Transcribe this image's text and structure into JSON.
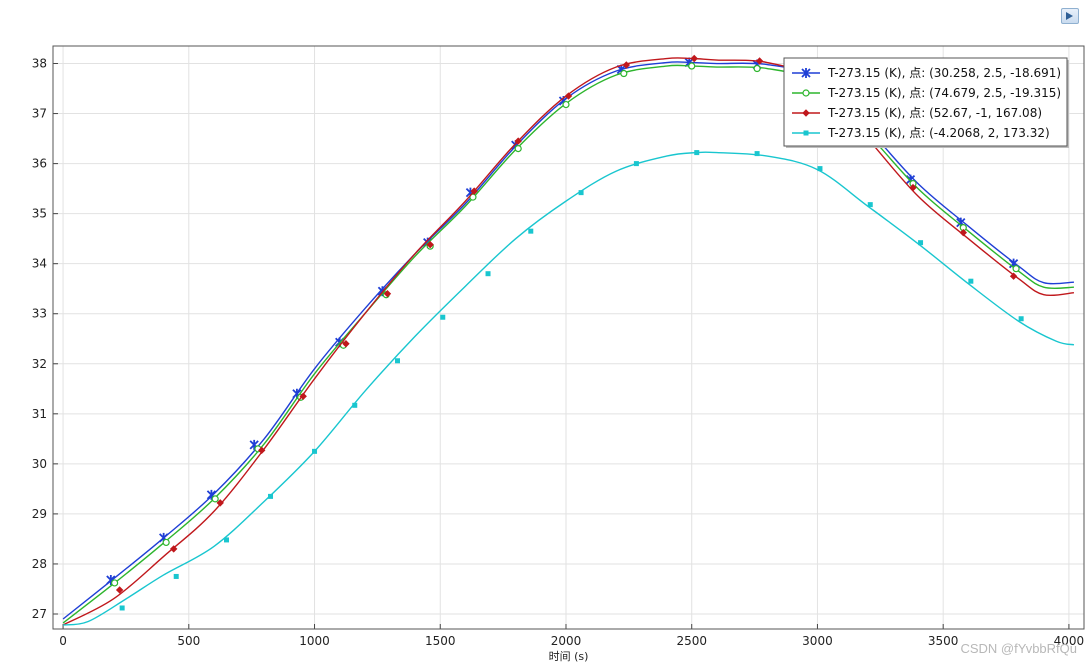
{
  "toolbar": {
    "corner_icon": "plot-window-icon"
  },
  "watermark": "CSDN @fYvbbRfQu",
  "chart_data": {
    "type": "line",
    "title": "",
    "xlabel": "时间 (s)",
    "ylabel": "",
    "xlim": [
      -40,
      4060
    ],
    "ylim": [
      26.7,
      38.35
    ],
    "xticks": [
      0,
      500,
      1000,
      1500,
      2000,
      2500,
      3000,
      3500,
      4000
    ],
    "yticks": [
      27,
      28,
      29,
      30,
      31,
      32,
      33,
      34,
      35,
      36,
      37,
      38
    ],
    "grid": true,
    "legend_position": "top-right",
    "series": [
      {
        "name": "T-273.15 (K), 点: (30.258, 2.5, -18.691)",
        "color": "#1f3fd6",
        "marker": "star",
        "x": [
          0,
          200,
          400,
          600,
          800,
          1000,
          1200,
          1400,
          1600,
          1800,
          2000,
          2200,
          2400,
          2500,
          2600,
          2800,
          3000,
          3200,
          3400,
          3600,
          3800,
          3900,
          4020
        ],
        "y": [
          26.9,
          27.7,
          28.52,
          29.4,
          30.5,
          31.9,
          33.1,
          34.2,
          35.2,
          36.35,
          37.3,
          37.85,
          38.02,
          38.02,
          38.0,
          37.98,
          37.7,
          36.7,
          35.6,
          34.75,
          33.95,
          33.62,
          33.63
        ],
        "marker_x": [
          190,
          400,
          590,
          760,
          930,
          1100,
          1270,
          1450,
          1620,
          1800,
          1990,
          2220,
          2490,
          2760,
          3370,
          3570,
          3780
        ],
        "marker_y": [
          27.68,
          28.52,
          29.38,
          30.38,
          31.4,
          32.43,
          33.45,
          34.42,
          35.42,
          36.37,
          37.25,
          37.88,
          38.02,
          37.98,
          35.68,
          34.82,
          34.0
        ]
      },
      {
        "name": "T-273.15 (K), 点: (74.679, 2.5, -19.315)",
        "color": "#2db52d",
        "marker": "circle",
        "x": [
          0,
          200,
          400,
          600,
          800,
          1000,
          1200,
          1400,
          1600,
          1800,
          2000,
          2200,
          2400,
          2500,
          2600,
          2800,
          3000,
          3200,
          3400,
          3600,
          3800,
          3900,
          4020
        ],
        "y": [
          26.82,
          27.6,
          28.42,
          29.3,
          30.4,
          31.8,
          33.0,
          34.15,
          35.15,
          36.28,
          37.2,
          37.77,
          37.95,
          37.95,
          37.93,
          37.9,
          37.6,
          36.6,
          35.5,
          34.65,
          33.85,
          33.53,
          33.53
        ],
        "marker_x": [
          205,
          410,
          605,
          775,
          945,
          1115,
          1285,
          1460,
          1630,
          1810,
          2000,
          2230,
          2500,
          2760,
          3380,
          3580,
          3790
        ],
        "marker_y": [
          27.62,
          28.43,
          29.3,
          30.3,
          31.33,
          32.37,
          33.38,
          34.35,
          35.33,
          36.3,
          37.18,
          37.8,
          37.95,
          37.9,
          35.6,
          34.72,
          33.9
        ]
      },
      {
        "name": "T-273.15 (K), 点: (52.67, -1, 167.08)",
        "color": "#c0181c",
        "marker": "diamond",
        "x": [
          0,
          200,
          400,
          600,
          800,
          1000,
          1200,
          1400,
          1600,
          1800,
          2000,
          2200,
          2400,
          2500,
          2600,
          2800,
          3000,
          3200,
          3400,
          3600,
          3800,
          3900,
          4020
        ],
        "y": [
          26.78,
          27.3,
          28.15,
          29.05,
          30.3,
          31.7,
          33.0,
          34.2,
          35.25,
          36.4,
          37.35,
          37.93,
          38.1,
          38.1,
          38.07,
          38.02,
          37.65,
          36.5,
          35.35,
          34.5,
          33.7,
          33.38,
          33.42
        ],
        "marker_x": [
          225,
          440,
          625,
          790,
          955,
          1125,
          1290,
          1460,
          1635,
          1810,
          2010,
          2240,
          2510,
          2770,
          3380,
          3580,
          3780
        ],
        "marker_y": [
          27.48,
          28.3,
          29.22,
          30.27,
          31.35,
          32.4,
          33.4,
          34.38,
          35.45,
          36.45,
          37.35,
          37.97,
          38.1,
          38.05,
          35.52,
          34.62,
          33.75
        ]
      },
      {
        "name": "T-273.15 (K), 点: (-4.2068, 2, 173.32)",
        "color": "#19c6cf",
        "marker": "square",
        "x": [
          0,
          100,
          250,
          400,
          600,
          800,
          1000,
          1200,
          1400,
          1600,
          1800,
          2000,
          2200,
          2400,
          2520,
          2600,
          2800,
          3000,
          3200,
          3400,
          3600,
          3800,
          3950,
          4020
        ],
        "y": [
          26.78,
          26.85,
          27.3,
          27.78,
          28.35,
          29.25,
          30.25,
          31.45,
          32.55,
          33.55,
          34.5,
          35.25,
          35.85,
          36.15,
          36.22,
          36.22,
          36.15,
          35.88,
          35.15,
          34.4,
          33.6,
          32.85,
          32.45,
          32.38
        ],
        "marker_x": [
          235,
          450,
          650,
          825,
          1000,
          1160,
          1330,
          1510,
          1690,
          1860,
          2060,
          2280,
          2520,
          2760,
          3010,
          3210,
          3410,
          3610,
          3810
        ],
        "marker_y": [
          27.12,
          27.75,
          28.48,
          29.35,
          30.25,
          31.17,
          32.06,
          32.93,
          33.8,
          34.65,
          35.42,
          36.0,
          36.22,
          36.2,
          35.9,
          35.18,
          34.42,
          33.65,
          32.9
        ]
      }
    ]
  }
}
